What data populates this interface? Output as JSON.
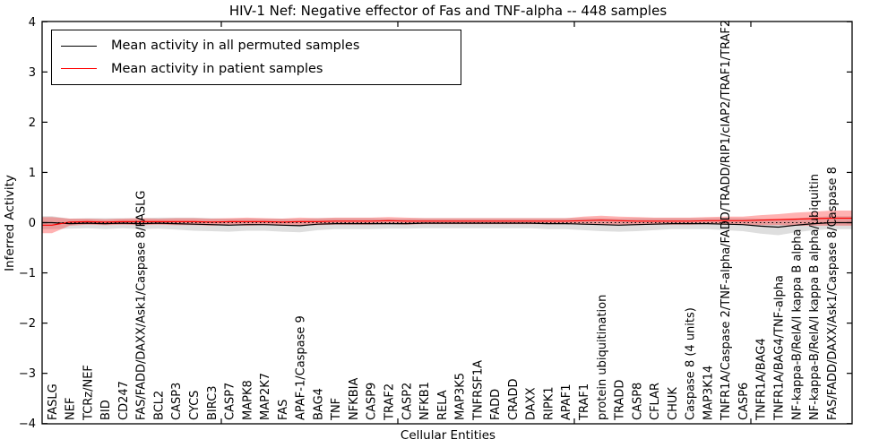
{
  "title": "HIV-1 Nef: Negative effector of Fas and TNF-alpha -- 448 samples",
  "legend": {
    "items": [
      {
        "label": "Mean activity in all permuted samples",
        "color": "#000000"
      },
      {
        "label": "Mean activity in patient samples",
        "color": "#ff0000"
      }
    ]
  },
  "chart_data": {
    "type": "line",
    "title": "HIV-1 Nef: Negative effector of Fas and TNF-alpha -- 448 samples",
    "xlabel": "Cellular Entities",
    "ylabel": "Inferred Activity",
    "ylim": [
      -4,
      4
    ],
    "yticks": [
      4,
      3,
      2,
      1,
      0,
      -1,
      -2,
      -3,
      -4
    ],
    "grid": false,
    "legend_position": "upper left",
    "zero_line": {
      "y": 0,
      "style": "dashed",
      "color": "#000000"
    },
    "categories": [
      "FASLG",
      "NEF",
      "TCRz/NEF",
      "BID",
      "CD247",
      "FAS/FADD/DAXX/Ask1/Caspase 8/FASLG",
      "BCL2",
      "CASP3",
      "CYCS",
      "BIRC3",
      "CASP7",
      "MAPK8",
      "MAP2K7",
      "FAS",
      "APAF-1/Caspase 9",
      "BAG4",
      "TNF",
      "NFKBIA",
      "CASP9",
      "TRAF2",
      "CASP2",
      "NFKB1",
      "RELA",
      "MAP3K5",
      "TNFRSF1A",
      "FADD",
      "CRADD",
      "DAXX",
      "RIPK1",
      "APAF1",
      "TRAF1",
      "protein ubiquitination",
      "TRADD",
      "CASP8",
      "CFLAR",
      "CHUK",
      "Caspase 8 (4 units)",
      "MAP3K14",
      "TNFR1A/Caspase 2/TNF-alpha/FADD/TRADD/RIP1/cIAP2/TRAF1/TRAF2",
      "CASP6",
      "TNFR1A/BAG4",
      "TNFR1A/BAG4/TNF-alpha",
      "NF-kappa-B/RelA/I kappa B alpha",
      "NF-kappa-B/RelA/I kappa B alpha/ubiquitin",
      "FAS/FADD/DAXX/Ask1/Caspase 8/Caspase 8"
    ],
    "series": [
      {
        "name": "Mean activity in all permuted samples",
        "color": "#000000",
        "band_color": "#000000",
        "band_opacity": 0.13,
        "values": [
          0.0,
          -0.02,
          -0.01,
          -0.02,
          -0.01,
          -0.02,
          -0.01,
          -0.02,
          -0.03,
          -0.04,
          -0.05,
          -0.04,
          -0.04,
          -0.05,
          -0.06,
          -0.03,
          -0.02,
          -0.02,
          -0.02,
          -0.02,
          -0.02,
          -0.01,
          -0.01,
          -0.01,
          -0.01,
          -0.01,
          -0.01,
          -0.01,
          -0.02,
          -0.02,
          -0.03,
          -0.04,
          -0.05,
          -0.04,
          -0.03,
          -0.02,
          -0.02,
          -0.02,
          -0.03,
          -0.04,
          -0.07,
          -0.09,
          -0.05,
          -0.02,
          0.0
        ],
        "band_upper": [
          0.13,
          0.08,
          0.09,
          0.09,
          0.09,
          0.09,
          0.1,
          0.1,
          0.1,
          0.09,
          0.08,
          0.08,
          0.08,
          0.08,
          0.07,
          0.09,
          0.09,
          0.09,
          0.09,
          0.08,
          0.08,
          0.09,
          0.09,
          0.09,
          0.09,
          0.09,
          0.09,
          0.09,
          0.09,
          0.09,
          0.09,
          0.09,
          0.08,
          0.09,
          0.09,
          0.09,
          0.09,
          0.09,
          0.09,
          0.09,
          0.08,
          0.07,
          0.09,
          0.11,
          0.13
        ],
        "band_lower": [
          -0.13,
          -0.12,
          -0.11,
          -0.13,
          -0.11,
          -0.13,
          -0.12,
          -0.14,
          -0.16,
          -0.17,
          -0.18,
          -0.16,
          -0.16,
          -0.18,
          -0.19,
          -0.15,
          -0.13,
          -0.13,
          -0.13,
          -0.12,
          -0.12,
          -0.11,
          -0.11,
          -0.11,
          -0.11,
          -0.11,
          -0.11,
          -0.11,
          -0.13,
          -0.13,
          -0.15,
          -0.17,
          -0.18,
          -0.17,
          -0.15,
          -0.13,
          -0.13,
          -0.13,
          -0.15,
          -0.17,
          -0.22,
          -0.25,
          -0.19,
          -0.15,
          -0.13
        ]
      },
      {
        "name": "Mean activity in patient samples",
        "color": "#ff0000",
        "band_color": "#ff0000",
        "band_opacity": 0.3,
        "values": [
          -0.05,
          0.01,
          0.02,
          0.01,
          0.02,
          0.02,
          0.02,
          0.02,
          0.02,
          0.01,
          0.02,
          0.02,
          0.02,
          0.01,
          0.02,
          0.02,
          0.03,
          0.03,
          0.03,
          0.04,
          0.03,
          0.03,
          0.03,
          0.03,
          0.03,
          0.03,
          0.03,
          0.03,
          0.03,
          0.03,
          0.04,
          0.05,
          0.04,
          0.03,
          0.03,
          0.03,
          0.03,
          0.04,
          0.04,
          0.04,
          0.05,
          0.06,
          0.07,
          0.08,
          0.09
        ],
        "band_upper": [
          0.11,
          0.08,
          0.08,
          0.07,
          0.08,
          0.09,
          0.08,
          0.09,
          0.09,
          0.08,
          0.09,
          0.1,
          0.09,
          0.08,
          0.1,
          0.09,
          0.1,
          0.1,
          0.1,
          0.11,
          0.1,
          0.09,
          0.09,
          0.09,
          0.09,
          0.09,
          0.09,
          0.09,
          0.09,
          0.09,
          0.12,
          0.14,
          0.12,
          0.11,
          0.1,
          0.1,
          0.1,
          0.11,
          0.12,
          0.12,
          0.15,
          0.17,
          0.2,
          0.22,
          0.24
        ],
        "band_lower": [
          -0.21,
          -0.06,
          -0.04,
          -0.05,
          -0.04,
          -0.05,
          -0.04,
          -0.05,
          -0.05,
          -0.06,
          -0.05,
          -0.06,
          -0.05,
          -0.06,
          -0.06,
          -0.05,
          -0.04,
          -0.04,
          -0.04,
          -0.03,
          -0.04,
          -0.03,
          -0.03,
          -0.03,
          -0.03,
          -0.03,
          -0.03,
          -0.03,
          -0.03,
          -0.03,
          -0.04,
          -0.04,
          -0.04,
          -0.05,
          -0.04,
          -0.04,
          -0.04,
          -0.03,
          -0.04,
          -0.04,
          -0.05,
          -0.05,
          -0.06,
          -0.06,
          -0.06
        ]
      }
    ]
  }
}
